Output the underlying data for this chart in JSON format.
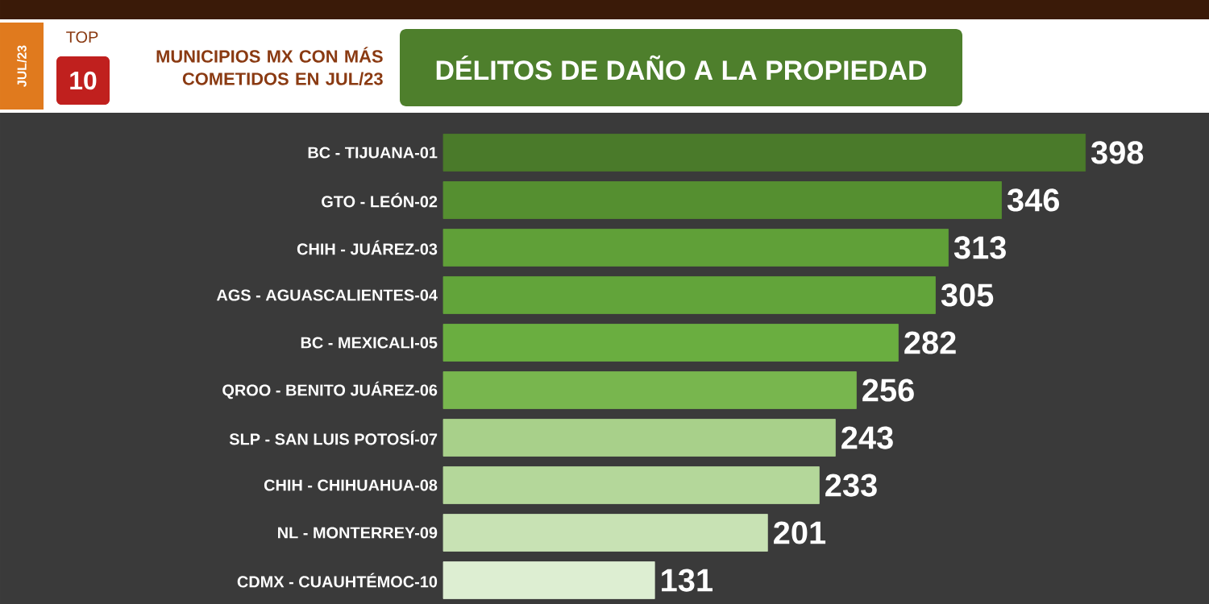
{
  "chart_data": {
    "type": "bar",
    "orientation": "horizontal",
    "title": "DÉLITOS DE DAÑO A LA PROPIEDAD",
    "subtitle": "MUNICIPIOS MX CON MÁS COMETIDOS EN JUL/23",
    "annotations": [
      "TOP",
      "10",
      "JUL/23"
    ],
    "categories": [
      "BC - TIJUANA-01",
      "GTO - LEÓN-02",
      "CHIH - JUÁREZ-03",
      "AGS - AGUASCALIENTES-04",
      "BC - MEXICALI-05",
      "QROO - BENITO JUÁREZ-06",
      "SLP - SAN LUIS POTOSÍ-07",
      "CHIH - CHIHUAHUA-08",
      "NL - MONTERREY-09",
      "CDMX - CUAUHTÉMOC-10"
    ],
    "values": [
      398,
      346,
      313,
      305,
      282,
      256,
      243,
      233,
      201,
      131
    ],
    "colors": [
      "#4a7a2a",
      "#558f30",
      "#60a038",
      "#62a43a",
      "#6aae40",
      "#78b64e",
      "#a8d08a",
      "#b4d79a",
      "#c8e2b4",
      "#ddeed2"
    ],
    "data_labels": true
  }
}
